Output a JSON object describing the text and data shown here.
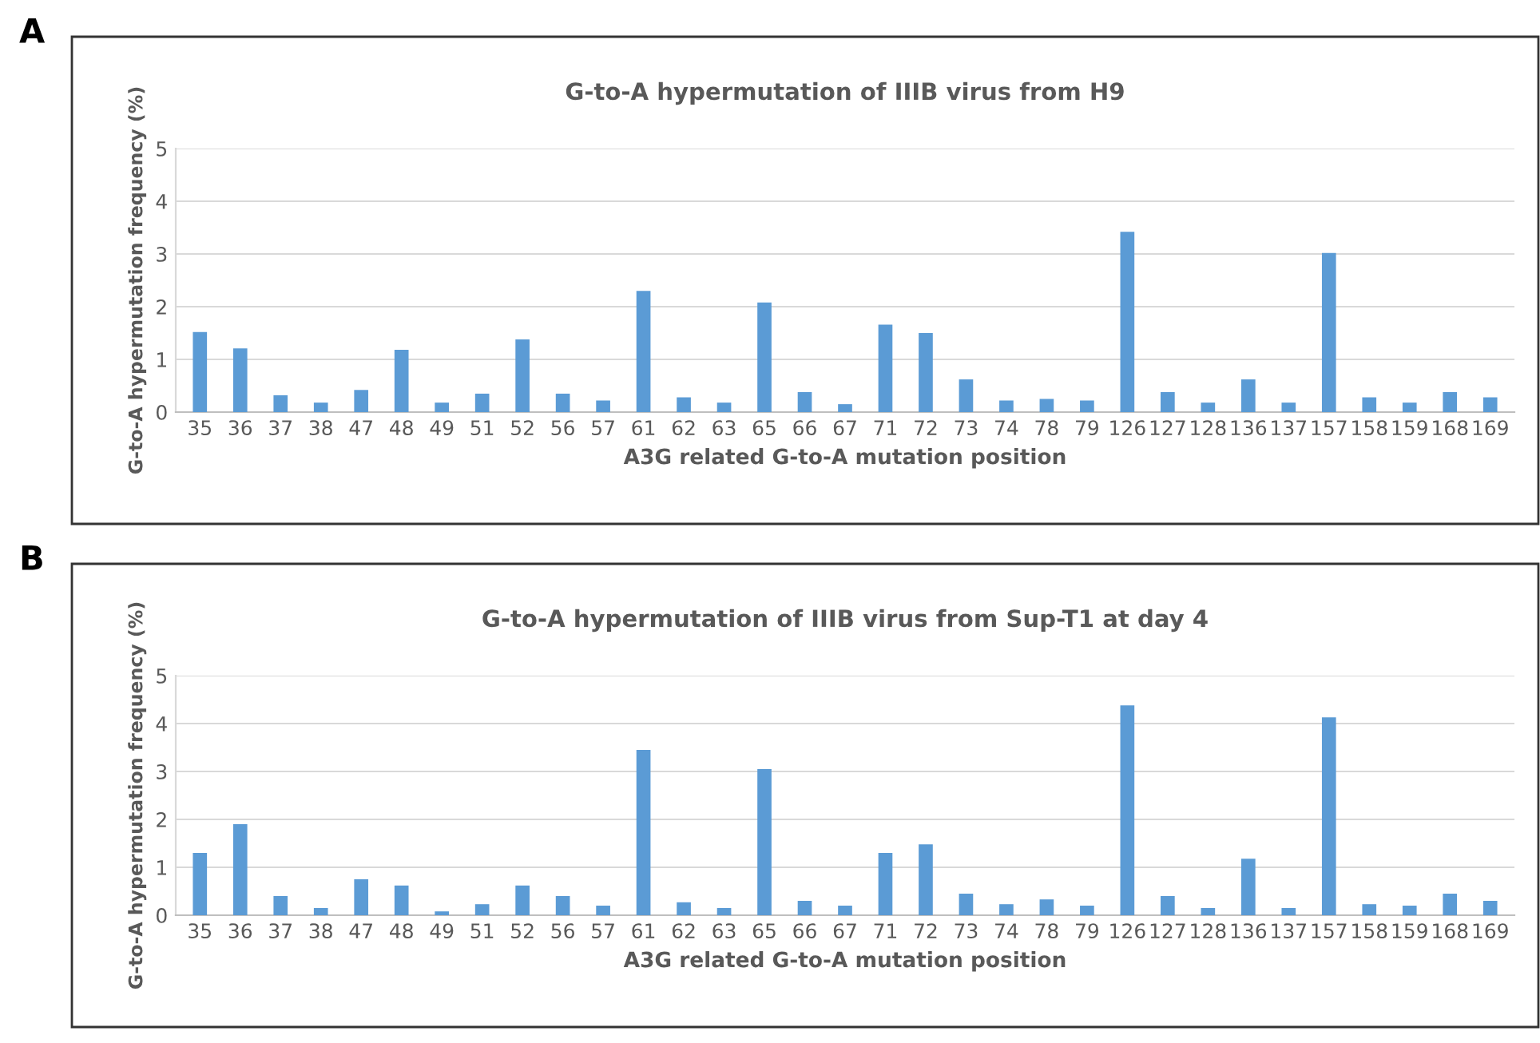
{
  "chart_data": [
    {
      "type": "bar",
      "title": "G-to-A hypermutation of IIIB virus from H9",
      "xlabel": "A3G related G-to-A mutation position",
      "ylabel": "G-to-A hypermutation frequency (%)",
      "annotations": [
        "A"
      ],
      "categories": [
        "35",
        "36",
        "37",
        "38",
        "47",
        "48",
        "49",
        "51",
        "52",
        "56",
        "57",
        "61",
        "62",
        "63",
        "65",
        "66",
        "67",
        "71",
        "72",
        "73",
        "74",
        "78",
        "79",
        "126",
        "127",
        "128",
        "136",
        "137",
        "157",
        "158",
        "159",
        "168",
        "169"
      ],
      "values": [
        1.52,
        1.21,
        0.32,
        0.18,
        0.42,
        1.18,
        0.18,
        0.35,
        1.38,
        0.35,
        0.22,
        2.3,
        0.28,
        0.18,
        2.08,
        0.38,
        0.15,
        1.66,
        1.5,
        0.62,
        0.22,
        0.25,
        0.22,
        3.42,
        0.38,
        0.18,
        0.62,
        0.18,
        3.02,
        0.28,
        0.18,
        0.38,
        0.28
      ],
      "color": "#5b9bd5",
      "ylim": [
        0,
        5
      ],
      "yticks": [
        0,
        1,
        2,
        3,
        4,
        5
      ],
      "grid": "y"
    },
    {
      "type": "bar",
      "title": "G-to-A hypermutation of IIIB virus from Sup-T1 at day 4",
      "xlabel": "A3G related G-to-A mutation position",
      "ylabel": "G-to-A hypermutation frequency (%)",
      "annotations": [
        "B"
      ],
      "categories": [
        "35",
        "36",
        "37",
        "38",
        "47",
        "48",
        "49",
        "51",
        "52",
        "56",
        "57",
        "61",
        "62",
        "63",
        "65",
        "66",
        "67",
        "71",
        "72",
        "73",
        "74",
        "78",
        "79",
        "126",
        "127",
        "128",
        "136",
        "137",
        "157",
        "158",
        "159",
        "168",
        "169"
      ],
      "values": [
        1.3,
        1.9,
        0.4,
        0.15,
        0.75,
        0.62,
        0.08,
        0.23,
        0.62,
        0.4,
        0.2,
        3.45,
        0.27,
        0.15,
        3.05,
        0.3,
        0.2,
        1.3,
        1.48,
        0.45,
        0.23,
        0.33,
        0.2,
        4.38,
        0.4,
        0.15,
        1.18,
        0.15,
        4.13,
        0.23,
        0.2,
        0.45,
        0.3
      ],
      "color": "#5b9bd5",
      "ylim": [
        0,
        5
      ],
      "yticks": [
        0,
        1,
        2,
        3,
        4,
        5
      ],
      "grid": "y"
    }
  ]
}
